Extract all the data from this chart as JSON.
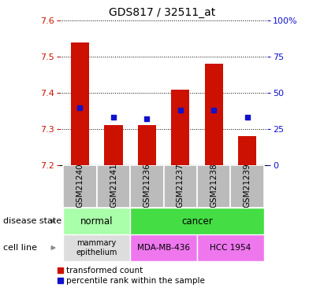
{
  "title": "GDS817 / 32511_at",
  "samples": [
    "GSM21240",
    "GSM21241",
    "GSM21236",
    "GSM21237",
    "GSM21238",
    "GSM21239"
  ],
  "transformed_counts": [
    7.54,
    7.31,
    7.31,
    7.41,
    7.48,
    7.28
  ],
  "percentile_ranks": [
    40,
    33,
    32,
    38,
    38,
    33
  ],
  "ylim_left": [
    7.2,
    7.6
  ],
  "ylim_right": [
    0,
    100
  ],
  "yticks_left": [
    7.2,
    7.3,
    7.4,
    7.5,
    7.6
  ],
  "yticks_right": [
    0,
    25,
    50,
    75,
    100
  ],
  "bar_color": "#cc1100",
  "dot_color": "#1111cc",
  "bar_width": 0.55,
  "base_value": 7.2,
  "normal_color_light": "#aaffaa",
  "cancer_color": "#44dd44",
  "cell_mammary_color": "#dddddd",
  "cell_mda_color": "#ee77ee",
  "cell_hcc_color": "#ee77ee",
  "tick_label_bg": "#bbbbbb",
  "legend_red_label": "transformed count",
  "legend_blue_label": "percentile rank within the sample",
  "title_fontsize": 10,
  "tick_fontsize": 8,
  "anno_fontsize": 8,
  "sample_fontsize": 7.5,
  "row_fontsize": 8.5,
  "legend_fontsize": 7.5
}
